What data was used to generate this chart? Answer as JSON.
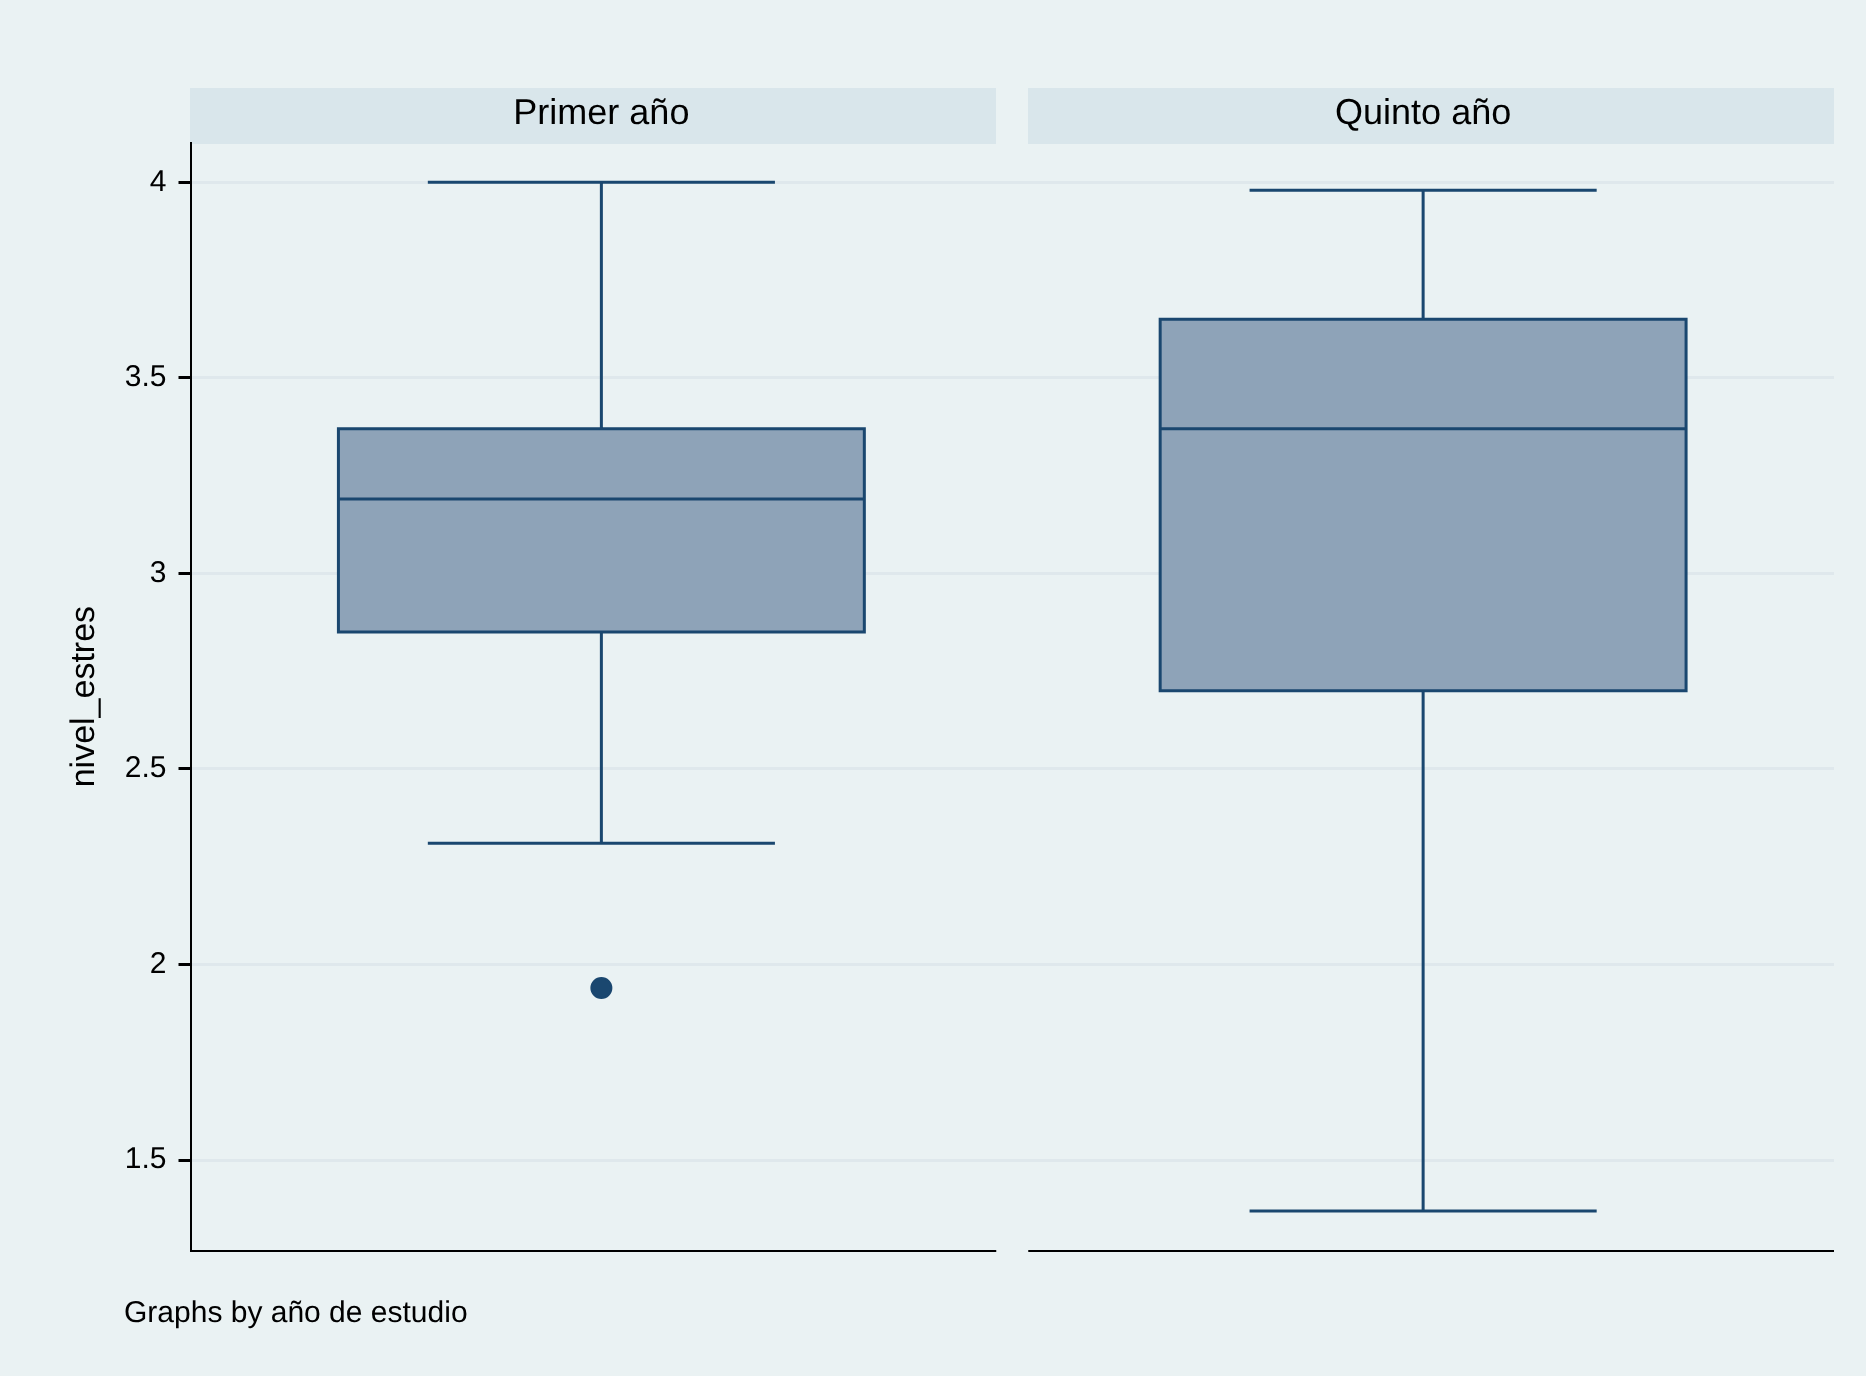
{
  "chart_data": {
    "type": "box",
    "ylabel": "nivel_estres",
    "categories": [
      "Primer año",
      "Quinto año"
    ],
    "color": "#8ea3b8",
    "boxes": [
      {
        "low": 2.31,
        "q1": 2.85,
        "median": 3.19,
        "q3": 3.37,
        "high": 4,
        "outliers": [
          1.94
        ]
      },
      {
        "low": 1.37,
        "q1": 2.7,
        "median": 3.37,
        "q3": 3.65,
        "high": 3.98
      }
    ],
    "ylim": [
      1.27,
      4.1
    ],
    "yticks": [
      1.5,
      2,
      2.5,
      3,
      3.5,
      4
    ],
    "grid": "y",
    "annotations": [
      "Graphs by año de estudio"
    ]
  }
}
